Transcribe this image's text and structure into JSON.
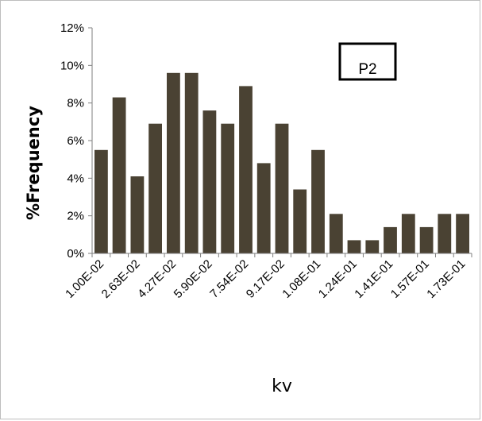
{
  "chart_data": {
    "type": "bar",
    "title": "",
    "xlabel": "kv",
    "ylabel": "%Frequency",
    "ylim": [
      0,
      0.12
    ],
    "yticks": [
      "0%",
      "2%",
      "4%",
      "6%",
      "8%",
      "10%",
      "12%"
    ],
    "categories": [
      "1.00E-02",
      "",
      "2.63E-02",
      "",
      "4.27E-02",
      "",
      "5.90E-02",
      "",
      "7.54E-02",
      "",
      "9.17E-02",
      "",
      "1.08E-01",
      "",
      "1.24E-01",
      "",
      "1.41E-01",
      "",
      "1.57E-01",
      "",
      "1.73E-01"
    ],
    "values": [
      0.055,
      0.083,
      0.041,
      0.069,
      0.096,
      0.096,
      0.076,
      0.069,
      0.089,
      0.048,
      0.069,
      0.034,
      0.055,
      0.021,
      0.007,
      0.007,
      0.014,
      0.021,
      0.014,
      0.021,
      0.021
    ],
    "bar_color": "#4a4233",
    "grid": false,
    "legend": "none",
    "annotation": "P2"
  }
}
